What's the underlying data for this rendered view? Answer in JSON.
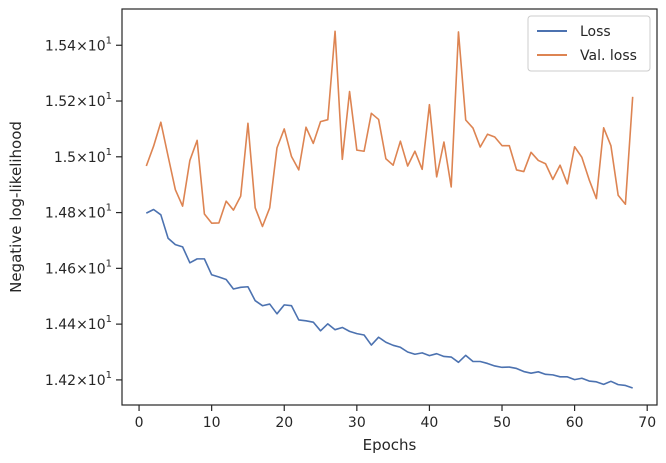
{
  "chart_data": {
    "type": "line",
    "title": "",
    "xlabel": "Epochs",
    "ylabel": "Negative log-likelihood",
    "xlim": [
      -2.35,
      71.35
    ],
    "ylim": [
      14.11,
      15.53
    ],
    "x_ticks": [
      0,
      10,
      20,
      30,
      40,
      50,
      60,
      70
    ],
    "x_tick_labels": [
      "0",
      "10",
      "20",
      "30",
      "40",
      "50",
      "60",
      "70"
    ],
    "y_ticks": [
      14.2,
      14.4,
      14.6,
      14.8,
      15.0,
      15.2,
      15.4
    ],
    "y_tick_labels": [
      {
        "mantissa": "1.42",
        "exponent": "1"
      },
      {
        "mantissa": "1.44",
        "exponent": "1"
      },
      {
        "mantissa": "1.46",
        "exponent": "1"
      },
      {
        "mantissa": "1.48",
        "exponent": "1"
      },
      {
        "mantissa": "1.5",
        "exponent": "1"
      },
      {
        "mantissa": "1.52",
        "exponent": "1"
      },
      {
        "mantissa": "1.54",
        "exponent": "1"
      }
    ],
    "y_tick_times": "×",
    "y_tick_base": "10",
    "grid": false,
    "legend_position": "top-right",
    "x": [
      1,
      2,
      3,
      4,
      5,
      6,
      7,
      8,
      9,
      10,
      11,
      12,
      13,
      14,
      15,
      16,
      17,
      18,
      19,
      20,
      21,
      22,
      23,
      24,
      25,
      26,
      27,
      28,
      29,
      30,
      31,
      32,
      33,
      34,
      35,
      36,
      37,
      38,
      39,
      40,
      41,
      42,
      43,
      44,
      45,
      46,
      47,
      48,
      49,
      50,
      51,
      52,
      53,
      54,
      55,
      56,
      57,
      58,
      59,
      60,
      61,
      62,
      63,
      64,
      65,
      66,
      67,
      68
    ],
    "series": [
      {
        "name": "Loss",
        "color": "#4c72b0",
        "values": [
          14.798,
          14.811,
          14.792,
          14.708,
          14.685,
          14.677,
          14.62,
          14.634,
          14.634,
          14.577,
          14.569,
          14.56,
          14.526,
          14.532,
          14.534,
          14.484,
          14.466,
          14.472,
          14.437,
          14.469,
          14.466,
          14.415,
          14.412,
          14.407,
          14.376,
          14.401,
          14.38,
          14.388,
          14.374,
          14.366,
          14.361,
          14.325,
          14.353,
          14.335,
          14.324,
          14.317,
          14.3,
          14.292,
          14.297,
          14.287,
          14.294,
          14.284,
          14.282,
          14.263,
          14.288,
          14.266,
          14.266,
          14.259,
          14.25,
          14.245,
          14.246,
          14.241,
          14.23,
          14.224,
          14.229,
          14.22,
          14.218,
          14.211,
          14.211,
          14.201,
          14.206,
          14.196,
          14.193,
          14.184,
          14.195,
          14.183,
          14.18,
          14.171
        ]
      },
      {
        "name": "Val. loss",
        "color": "#dd8452",
        "values": [
          14.967,
          15.038,
          15.124,
          15.002,
          14.882,
          14.823,
          14.987,
          15.059,
          14.795,
          14.762,
          14.763,
          14.841,
          14.809,
          14.859,
          15.12,
          14.817,
          14.75,
          14.817,
          15.032,
          15.1,
          15.001,
          14.953,
          15.106,
          15.048,
          15.126,
          15.133,
          15.45,
          14.991,
          15.234,
          15.024,
          15.02,
          15.156,
          15.134,
          14.993,
          14.97,
          15.056,
          14.967,
          15.02,
          14.955,
          15.187,
          14.928,
          15.053,
          14.892,
          15.448,
          15.132,
          15.103,
          15.035,
          15.081,
          15.071,
          15.04,
          15.04,
          14.953,
          14.947,
          15.016,
          14.987,
          14.975,
          14.919,
          14.97,
          14.903,
          15.036,
          14.998,
          14.918,
          14.85,
          15.104,
          15.04,
          14.862,
          14.83,
          15.215
        ]
      }
    ]
  }
}
